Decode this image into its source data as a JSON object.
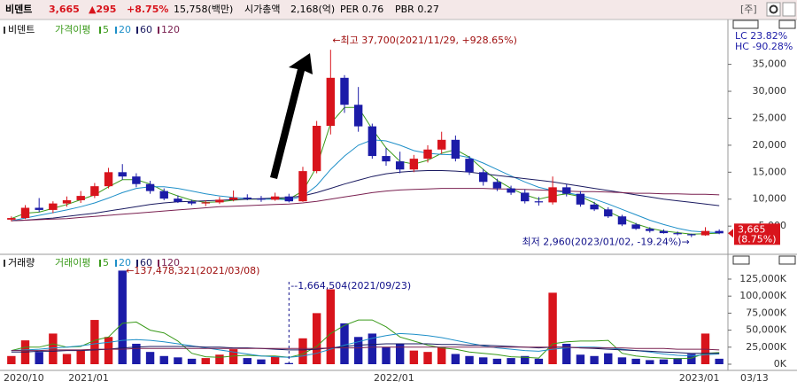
{
  "header": {
    "name": "비덴트",
    "price": "3,665",
    "change": "▲295",
    "change_pct": "+8.75%",
    "trade_value": "15,758(백만)",
    "market_cap_label": "시가총액",
    "market_cap": "2,168(억)",
    "per": "PER 0.76",
    "pbr": "PBR 0.27",
    "tab": "[주]"
  },
  "chart_data": [
    {
      "type": "candlestick",
      "title": "비덴트",
      "ma_title": "가격이평",
      "lc": "LC  23.82%",
      "hc": "HC -90.28%",
      "price_tag": "3,665",
      "price_tag_pct": "(8.75%)",
      "high_note": "←최고 37,700(2021/11/29, +928.65%)",
      "low_note": "최저 2,960(2023/01/02, -19.24%)→",
      "up_color": "#d8141c",
      "down_color": "#1c1ca8",
      "categories": [
        "2020/10",
        null,
        null,
        null,
        null,
        "2021/01",
        null,
        null,
        null,
        null,
        null,
        null,
        null,
        null,
        null,
        null,
        null,
        null,
        null,
        null,
        null,
        null,
        null,
        null,
        null,
        null,
        null,
        "2022/01",
        null,
        null,
        null,
        null,
        null,
        null,
        null,
        null,
        null,
        null,
        null,
        null,
        null,
        null,
        null,
        null,
        null,
        null,
        null,
        null,
        null,
        "2023/01",
        null,
        null
      ],
      "last_date": "03/13",
      "open": [
        6200,
        6500,
        8400,
        8000,
        9200,
        9800,
        10600,
        12400,
        15000,
        14200,
        12800,
        11500,
        10100,
        9500,
        9200,
        9400,
        9900,
        10300,
        10100,
        9900,
        10500,
        9600,
        15200,
        23600,
        32500,
        27500,
        23500,
        18000,
        17000,
        15500,
        17500,
        19200,
        21000,
        17500,
        15000,
        13200,
        12000,
        11200,
        9600,
        9400,
        12200,
        11000,
        9000,
        8100,
        6800,
        5300,
        4500,
        4100,
        3700,
        3500,
        3300,
        4100
      ],
      "high": [
        6800,
        8900,
        10200,
        9600,
        10500,
        11500,
        13000,
        15800,
        16500,
        14800,
        13400,
        12000,
        10700,
        9900,
        9800,
        10400,
        11600,
        10900,
        10600,
        11200,
        11000,
        16000,
        24500,
        37700,
        33000,
        30800,
        24000,
        19500,
        18800,
        18200,
        20000,
        22500,
        21800,
        18000,
        15600,
        13800,
        12500,
        11800,
        10400,
        14200,
        12800,
        11500,
        9500,
        8500,
        7100,
        5600,
        4800,
        4400,
        4000,
        3600,
        4800,
        4400
      ],
      "low": [
        5900,
        6300,
        7600,
        7400,
        8600,
        9300,
        10200,
        12000,
        13600,
        12200,
        11000,
        9800,
        9300,
        8900,
        8700,
        9100,
        9600,
        9800,
        9500,
        9700,
        9400,
        9500,
        14800,
        22000,
        26000,
        22500,
        17500,
        16200,
        14800,
        15000,
        16800,
        18400,
        17000,
        14500,
        12500,
        11500,
        10800,
        9200,
        8800,
        9000,
        10500,
        8600,
        7800,
        6500,
        5000,
        4300,
        3800,
        3600,
        3300,
        2960,
        3200,
        3500
      ],
      "close": [
        6500,
        8400,
        8000,
        9200,
        9800,
        10600,
        12400,
        15000,
        14200,
        12800,
        11500,
        10100,
        9500,
        9200,
        9400,
        9900,
        10300,
        10100,
        9900,
        10500,
        9600,
        15200,
        23600,
        32500,
        27500,
        23500,
        18000,
        17000,
        15500,
        17500,
        19200,
        21000,
        17500,
        15000,
        13200,
        12000,
        11200,
        9600,
        9400,
        12200,
        11000,
        9000,
        8100,
        6800,
        5300,
        4500,
        4100,
        3700,
        3500,
        3300,
        4100,
        3665
      ],
      "series": [
        {
          "name": "5",
          "color": "#3a9a1a",
          "values": [
            6400,
            7400,
            7600,
            8300,
            9000,
            9900,
            10800,
            12300,
            13600,
            13600,
            12800,
            11500,
            10600,
            9800,
            9400,
            9500,
            9800,
            10000,
            10000,
            10200,
            10000,
            11500,
            16000,
            24000,
            27000,
            27000,
            23000,
            19500,
            17000,
            16500,
            17200,
            18500,
            19200,
            17800,
            15500,
            13500,
            12000,
            10800,
            10000,
            10600,
            11000,
            10500,
            9300,
            7700,
            6500,
            5400,
            4600,
            4100,
            3800,
            3500,
            3600,
            3700
          ]
        },
        {
          "name": "20",
          "color": "#1e8fc8",
          "values": [
            6000,
            6500,
            7000,
            7500,
            8000,
            8600,
            9300,
            10200,
            11200,
            12000,
            12300,
            12300,
            12000,
            11500,
            11000,
            10600,
            10300,
            10100,
            10000,
            10000,
            9900,
            10500,
            12500,
            15500,
            18000,
            20000,
            21000,
            20800,
            20000,
            19000,
            18500,
            18300,
            18200,
            17700,
            16700,
            15500,
            14300,
            13200,
            12200,
            11600,
            11200,
            10700,
            10000,
            9100,
            8100,
            7100,
            6100,
            5300,
            4600,
            4100,
            3900,
            3800
          ]
        },
        {
          "name": "60",
          "color": "#1a1a60",
          "values": [
            6000,
            6100,
            6300,
            6500,
            6800,
            7100,
            7400,
            7800,
            8200,
            8600,
            9000,
            9300,
            9500,
            9600,
            9700,
            9800,
            9900,
            10000,
            10100,
            10200,
            10300,
            10600,
            11200,
            12000,
            12800,
            13500,
            14200,
            14700,
            15000,
            15200,
            15300,
            15300,
            15200,
            15000,
            14700,
            14400,
            14100,
            13800,
            13500,
            13200,
            12800,
            12400,
            12000,
            11600,
            11200,
            10800,
            10400,
            10000,
            9700,
            9400,
            9100,
            8800
          ]
        },
        {
          "name": "120",
          "color": "#7a2050",
          "values": [
            6000,
            6100,
            6200,
            6300,
            6400,
            6600,
            6800,
            7000,
            7200,
            7400,
            7600,
            7800,
            8000,
            8200,
            8400,
            8600,
            8700,
            8800,
            8900,
            9000,
            9100,
            9300,
            9600,
            10000,
            10400,
            10800,
            11200,
            11500,
            11700,
            11800,
            11900,
            12000,
            12000,
            12000,
            12000,
            11900,
            11900,
            11800,
            11700,
            11600,
            11500,
            11400,
            11400,
            11300,
            11200,
            11100,
            11100,
            11000,
            11000,
            10900,
            10900,
            10800
          ]
        }
      ],
      "ylim": [
        100,
        42000
      ],
      "yticks": [
        {
          "value": 5000,
          "label": "5,000"
        },
        {
          "value": 10000,
          "label": "10,000"
        },
        {
          "value": 15000,
          "label": "15,000"
        },
        {
          "value": 20000,
          "label": "20,000"
        },
        {
          "value": 25000,
          "label": "25,000"
        },
        {
          "value": 30000,
          "label": "30,000"
        },
        {
          "value": 35000,
          "label": "35,000"
        }
      ]
    },
    {
      "type": "bar",
      "title": "거래량",
      "ma_title": "거래이평",
      "max_note": "←137,478,321(2021/03/08)",
      "min_note": "--1,664,504(2021/09/23)",
      "values": [
        12000000,
        35000000,
        18000000,
        45000000,
        15000000,
        20000000,
        65000000,
        40000000,
        137478321,
        30000000,
        18000000,
        12000000,
        10000000,
        8000000,
        9000000,
        14000000,
        22000000,
        9000000,
        7000000,
        11000000,
        1664504,
        38000000,
        75000000,
        110000000,
        60000000,
        40000000,
        45000000,
        25000000,
        30000000,
        20000000,
        18000000,
        25000000,
        15000000,
        12000000,
        10000000,
        8000000,
        9000000,
        12000000,
        8000000,
        105000000,
        30000000,
        14000000,
        12000000,
        16000000,
        10000000,
        8000000,
        6000000,
        7000000,
        9000000,
        15000000,
        45000000,
        8000000
      ],
      "series": [
        {
          "name": "5",
          "color": "#3a9a1a",
          "values": [
            20000000.0,
            25000000.0,
            25000000.0,
            30000000.0,
            25000000.0,
            26000000.0,
            35000000.0,
            40000000.0,
            60000000.0,
            62000000.0,
            50000000.0,
            46000000.0,
            34000000.0,
            16000000.0,
            11000000.0,
            10000000.0,
            12000000.0,
            13000000.0,
            12000000.0,
            12000000.0,
            10000000.0,
            15000000.0,
            26000000.0,
            45000000.0,
            57000000.0,
            65000000.0,
            65000000.0,
            55000000.0,
            40000000.0,
            34000000.0,
            28000000.0,
            24000000.0,
            22000000.0,
            18000000.0,
            16000000.0,
            14000000.0,
            11000000.0,
            10000000.0,
            9000000.0,
            30000000.0,
            33000000.0,
            34000000.0,
            34000000.0,
            35000000.0,
            16000000.0,
            12000000.0,
            10000000.0,
            9000000.0,
            8000000.0,
            9000000.0,
            16000000.0,
            17000000.0
          ]
        },
        {
          "name": "20",
          "color": "#1e8fc8",
          "values": [
            20000000.0,
            21000000.0,
            22000000.0,
            24000000.0,
            25000000.0,
            27000000.0,
            30000000.0,
            32000000.0,
            35000000.0,
            36000000.0,
            35000000.0,
            33000000.0,
            30000000.0,
            27000000.0,
            24000000.0,
            21000000.0,
            18000000.0,
            15000000.0,
            12000000.0,
            11000000.0,
            10000000.0,
            12000000.0,
            16000000.0,
            22000000.0,
            28000000.0,
            33000000.0,
            38000000.0,
            42000000.0,
            45000000.0,
            44000000.0,
            42000000.0,
            39000000.0,
            35000000.0,
            31000000.0,
            27000000.0,
            24000000.0,
            22000000.0,
            20000000.0,
            19000000.0,
            22000000.0,
            24000000.0,
            25000000.0,
            25000000.0,
            24000000.0,
            22000000.0,
            20000000.0,
            18000000.0,
            15000000.0,
            13000000.0,
            12000000.0,
            14000000.0,
            15000000.0
          ]
        },
        {
          "name": "60",
          "color": "#1a1a60",
          "values": [
            18000000.0,
            18000000.0,
            19000000.0,
            19000000.0,
            20000000.0,
            20000000.0,
            21000000.0,
            22000000.0,
            24000000.0,
            25000000.0,
            26000000.0,
            26000000.0,
            26000000.0,
            26000000.0,
            25000000.0,
            25000000.0,
            24000000.0,
            24000000.0,
            23000000.0,
            22000000.0,
            21000000.0,
            21000000.0,
            22000000.0,
            24000000.0,
            26000000.0,
            28000000.0,
            29000000.0,
            30000000.0,
            30000000.0,
            30000000.0,
            30000000.0,
            29000000.0,
            29000000.0,
            28000000.0,
            28000000.0,
            27000000.0,
            26000000.0,
            25000000.0,
            24000000.0,
            25000000.0,
            25000000.0,
            24000000.0,
            23000000.0,
            22000000.0,
            21000000.0,
            20000000.0,
            19000000.0,
            18000000.0,
            17000000.0,
            16000000.0,
            16000000.0,
            16000000.0
          ]
        },
        {
          "name": "120",
          "color": "#7a2050",
          "values": [
            20000000.0,
            20000000.0,
            20000000.0,
            21000000.0,
            21000000.0,
            21000000.0,
            22000000.0,
            22000000.0,
            22000000.0,
            23000000.0,
            23000000.0,
            23000000.0,
            23000000.0,
            23000000.0,
            23000000.0,
            23000000.0,
            23000000.0,
            23000000.0,
            23000000.0,
            23000000.0,
            23000000.0,
            23000000.0,
            23000000.0,
            24000000.0,
            24000000.0,
            24000000.0,
            25000000.0,
            25000000.0,
            25000000.0,
            25000000.0,
            25000000.0,
            25000000.0,
            25000000.0,
            25000000.0,
            25000000.0,
            25000000.0,
            25000000.0,
            25000000.0,
            25000000.0,
            25000000.0,
            25000000.0,
            24000000.0,
            24000000.0,
            24000000.0,
            24000000.0,
            23000000.0,
            23000000.0,
            23000000.0,
            22000000.0,
            22000000.0,
            22000000.0,
            21000000.0
          ]
        }
      ],
      "ylim": [
        0,
        144500000
      ],
      "yticks": [
        {
          "value": 0,
          "label": "0K"
        },
        {
          "value": 25000000,
          "label": "25,000K"
        },
        {
          "value": 50000000,
          "label": "50,000K"
        },
        {
          "value": 75000000,
          "label": "75,000K"
        },
        {
          "value": 100000000,
          "label": "100,000K"
        },
        {
          "value": 125000000,
          "label": "125,000K"
        }
      ]
    }
  ]
}
